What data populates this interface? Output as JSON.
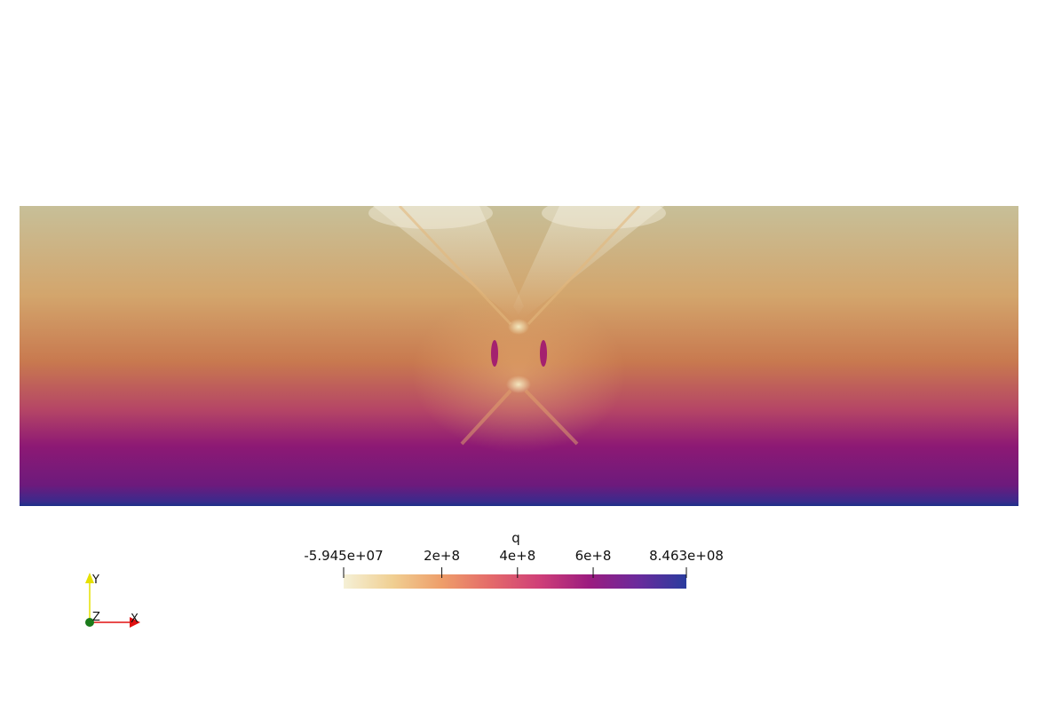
{
  "chart_data": {
    "type": "heatmap",
    "title": "",
    "scalar_name": "q",
    "colorbar": {
      "range": [
        -59450000,
        846300000
      ],
      "min_label": "-5.945e+07",
      "max_label": "8.463e+08",
      "ticks": [
        {
          "value": 200000000,
          "label": "2e+8"
        },
        {
          "value": 400000000,
          "label": "4e+8"
        },
        {
          "value": 600000000,
          "label": "6e+8"
        }
      ],
      "colormap": [
        "#f5f0d6",
        "#f0cf92",
        "#ee9e6a",
        "#e46a6a",
        "#cf3f78",
        "#9c1c7f",
        "#6b2a9c",
        "#2a3c9e"
      ],
      "orientation": "horizontal",
      "placement": "bottom-center"
    },
    "field": {
      "description_colors": {
        "top": "#c7bf98",
        "upper_mid": "#d3a56c",
        "mid": "#c8794f",
        "lower_mid": "#b54566",
        "low": "#8d1974",
        "bottom_edge": "#1e2f8a"
      },
      "highlight_color": "#f3efdf",
      "vent_color": "#a4216f"
    },
    "axes_triad": {
      "x_label": "X",
      "y_label": "Y",
      "z_label": "Z",
      "x_color": "#e01010",
      "y_color": "#e6e000",
      "z_color": "#1a7a1a",
      "placement": "bottom-left"
    }
  }
}
